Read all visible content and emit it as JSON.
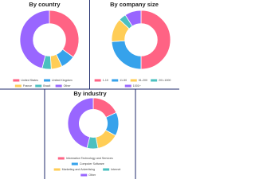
{
  "chart_data": [
    {
      "type": "pie",
      "donut": true,
      "title": "By country",
      "categories": [
        "United States",
        "United Kingdom",
        "France",
        "Brazil",
        "Other"
      ],
      "values": [
        35,
        8,
        6,
        5,
        46
      ],
      "colors": [
        "#ff6384",
        "#36a2eb",
        "#ffcd56",
        "#4bc0c0",
        "#9966ff"
      ]
    },
    {
      "type": "pie",
      "donut": true,
      "title": "By company size",
      "categories": [
        "1-10",
        "11-50",
        "51-200",
        "201-1000",
        "1001+"
      ],
      "values": [
        50,
        24,
        13,
        4,
        9
      ],
      "colors": [
        "#ff6384",
        "#36a2eb",
        "#ffcd56",
        "#4bc0c0",
        "#9966ff"
      ]
    },
    {
      "type": "pie",
      "donut": true,
      "title": "By industry",
      "categories": [
        "Information Technology and Services",
        "Computer Software",
        "Marketing and Advertising",
        "Internet",
        "Other"
      ],
      "values": [
        18,
        15,
        14,
        7,
        46
      ],
      "colors": [
        "#ff6384",
        "#36a2eb",
        "#ffcd56",
        "#4bc0c0",
        "#9966ff"
      ]
    }
  ]
}
